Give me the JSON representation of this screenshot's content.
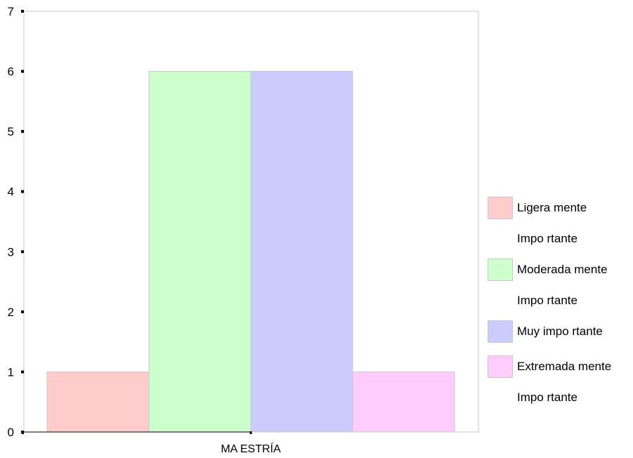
{
  "chart_data": {
    "type": "bar",
    "categories": [
      "MAESTRÍA"
    ],
    "series": [
      {
        "name": "Ligeramente Importante",
        "values": [
          1
        ],
        "color": "#ffcccc"
      },
      {
        "name": "Moderadamente Importante",
        "values": [
          6
        ],
        "color": "#ccffcc"
      },
      {
        "name": "Muy importante",
        "values": [
          6
        ],
        "color": "#ccccff"
      },
      {
        "name": "Extremadamente Importante",
        "values": [
          1
        ],
        "color": "#ffccff"
      }
    ],
    "ylim": [
      0,
      7
    ],
    "yticks": [
      "0",
      "1",
      "2",
      "3",
      "4",
      "5",
      "6",
      "7"
    ],
    "grid": false,
    "legend_position": "right"
  },
  "legend": {
    "items": [
      {
        "line1": "Ligera mente",
        "line2": "Impo rtante",
        "color": "#ffcccc"
      },
      {
        "line1": "Moderada mente",
        "line2": "Impo rtante",
        "color": "#ccffcc"
      },
      {
        "line1": "Muy impo rtante",
        "line2": "",
        "color": "#ccccff"
      },
      {
        "line1": "Extremada mente",
        "line2": "Impo rtante",
        "color": "#ffccff"
      }
    ]
  },
  "x_axis": {
    "category_label": "MA ESTRÍA"
  }
}
